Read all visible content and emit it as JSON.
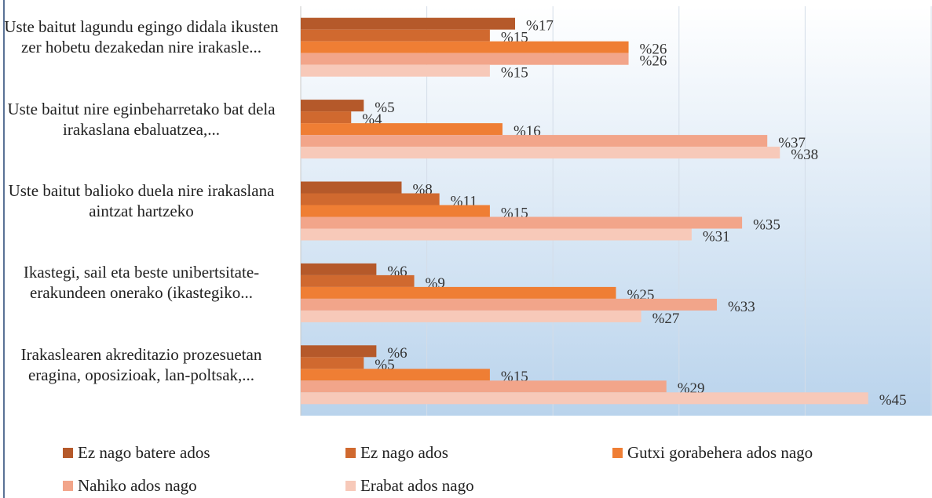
{
  "chart_data": {
    "type": "bar",
    "orientation": "horizontal",
    "categories": [
      "Uste baitut lagundu egingo didala ikusten zer hobetu dezakedan nire irakasle...",
      "Uste baitut nire eginbeharretako bat dela irakaslana ebaluatzea,...",
      "Uste baitut balioko duela nire irakaslana aintzat hartzeko",
      "Ikastegi, sail eta beste unibertsitate-erakundeen onerako (ikastegiko...",
      "Irakaslearen akreditazio prozesuetan eragina, oposizioak, lan-poltsak,..."
    ],
    "series": [
      {
        "name": "Ez nago batere ados",
        "color": "#b5592a",
        "values": [
          17,
          5,
          8,
          6,
          6
        ],
        "value_labels": [
          "%17",
          "%5",
          "%8",
          "%6",
          "%6"
        ]
      },
      {
        "name": "Ez nago ados",
        "color": "#d0692f",
        "values": [
          15,
          4,
          11,
          9,
          5
        ],
        "value_labels": [
          "%15",
          "%4",
          "%11",
          "%9",
          "%5"
        ]
      },
      {
        "name": "Gutxi gorabehera ados nago",
        "color": "#ef7e34",
        "values": [
          26,
          16,
          15,
          25,
          15
        ],
        "value_labels": [
          "%26",
          "%16",
          "%15",
          "%25",
          "%15"
        ]
      },
      {
        "name": "Nahiko ados nago",
        "color": "#f2a58a",
        "values": [
          26,
          37,
          35,
          33,
          29
        ],
        "value_labels": [
          "%26",
          "%37",
          "%35",
          "%33",
          "%29"
        ]
      },
      {
        "name": "Erabat ados nago",
        "color": "#f7c9b9",
        "values": [
          15,
          38,
          31,
          27,
          45
        ],
        "value_labels": [
          "%15",
          "%38",
          "%31",
          "%27",
          "%45"
        ]
      }
    ],
    "xlim": [
      0,
      50
    ],
    "xticks": [
      0,
      10,
      20,
      30,
      40,
      50
    ],
    "grid": true
  }
}
